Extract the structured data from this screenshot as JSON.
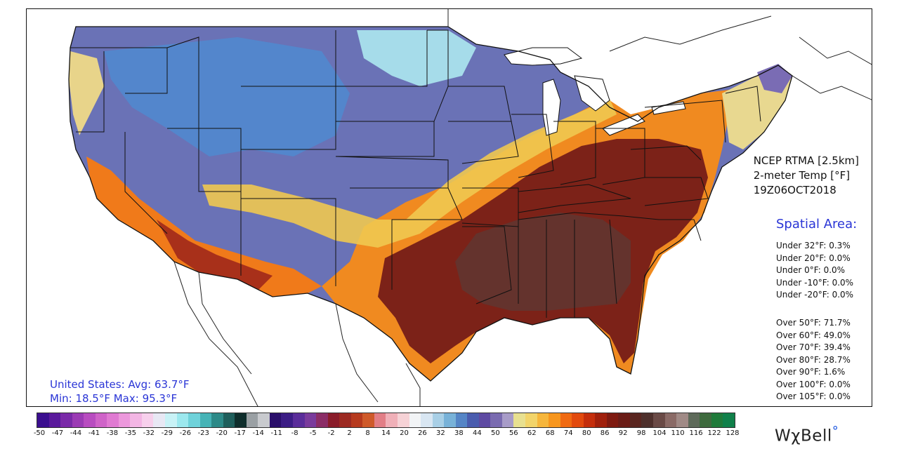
{
  "product": {
    "line1": "NCEP RTMA [2.5km]",
    "line2": "2-meter Temp [°F]",
    "line3": "19Z06OCT2018"
  },
  "spatial_area": {
    "title": "Spatial Area:",
    "under": [
      "Under 32°F: 0.3%",
      "Under 20°F: 0.0%",
      "Under 0°F: 0.0%",
      "Under -10°F: 0.0%",
      "Under -20°F: 0.0%"
    ],
    "over": [
      "Over 50°F: 71.7%",
      "Over 60°F: 49.0%",
      "Over 70°F: 39.4%",
      "Over 80°F: 28.7%",
      "Over 90°F: 1.6%",
      "Over 100°F: 0.0%",
      "Over 105°F: 0.0%"
    ]
  },
  "summary": {
    "line1": "United States: Avg:  63.7°F",
    "line2": "Min:  18.5°F Max:  95.3°F"
  },
  "colorbar": {
    "ticks": [
      "-50",
      "-47",
      "-44",
      "-41",
      "-38",
      "-35",
      "-32",
      "-29",
      "-26",
      "-23",
      "-20",
      "-17",
      "-14",
      "-11",
      "-8",
      "-5",
      "-2",
      "2",
      "8",
      "14",
      "20",
      "26",
      "32",
      "38",
      "44",
      "50",
      "56",
      "62",
      "68",
      "74",
      "80",
      "86",
      "92",
      "98",
      "104",
      "110",
      "116",
      "122",
      "128"
    ],
    "colors": [
      "#3b0f8f",
      "#5a1a9c",
      "#7a2aa8",
      "#9b3bb4",
      "#b84cc0",
      "#cf63c8",
      "#e07ad2",
      "#ec98dc",
      "#f3b6e4",
      "#f7d0ec",
      "#e8e8f4",
      "#c8f2f6",
      "#9ce8ee",
      "#6fd2da",
      "#46b3b6",
      "#2d8a88",
      "#1f5f5c",
      "#0f2e2c",
      "#9aa0a4",
      "#c8cace",
      "#2a0f6a",
      "#3c1d85",
      "#5a2d9a",
      "#7a3b9c",
      "#8b2d66",
      "#8a1c2a",
      "#9c2a22",
      "#b63a1e",
      "#cf5a2a",
      "#e27e86",
      "#f0b0b8",
      "#f6d2d6",
      "#f2f4f6",
      "#d8e6f2",
      "#a8cfe6",
      "#78b2d8",
      "#5585c6",
      "#4a5cae",
      "#5e4aa2",
      "#7a6bb0",
      "#a89cc8",
      "#e8e090",
      "#f2d46a",
      "#f6b63c",
      "#f7961e",
      "#f06a12",
      "#e24a0e",
      "#c42e0c",
      "#a0200c",
      "#7e1a10",
      "#6a1c16",
      "#5a2620",
      "#4e302c",
      "#6a4a46",
      "#8a6a66",
      "#a08a86",
      "#5e6a5a",
      "#3e6a3e",
      "#1f7a3a",
      "#10804a"
    ]
  },
  "map": {
    "palette": {
      "cold_purple": "#5b5aa8",
      "cold_blue": "#4f8fd0",
      "light_cyan": "#a6e2ea",
      "pale_yellow": "#ecdc8e",
      "yellow": "#f2c24e",
      "orange": "#f28a1a",
      "red_orange": "#d8501a",
      "dark_red": "#7a1f18",
      "brown_gray": "#5a3b36"
    }
  },
  "logo": {
    "text": "WχBell",
    "mark": "°"
  }
}
